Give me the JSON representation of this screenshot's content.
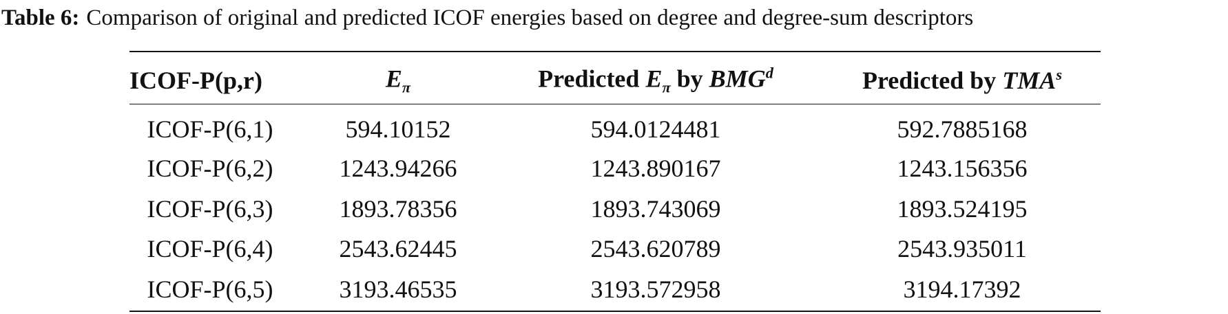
{
  "caption": {
    "label": "Table 6:",
    "text": "Comparison of original and predicted ICOF energies based on degree and degree-sum descriptors"
  },
  "table": {
    "header": [
      [
        "ICOF-P(p,r)"
      ],
      [
        "E",
        "π"
      ],
      [
        "Predicted ",
        "E",
        "π",
        " by ",
        "BMG",
        "d"
      ],
      [
        "Predicted by ",
        "TMA",
        "s"
      ]
    ],
    "rows": [
      [
        "ICOF-P(6,1)",
        "594.10152",
        "594.0124481",
        "592.7885168"
      ],
      [
        "ICOF-P(6,2)",
        "1243.94266",
        "1243.890167",
        "1243.156356"
      ],
      [
        "ICOF-P(6,3)",
        "1893.78356",
        "1893.743069",
        "1893.524195"
      ],
      [
        "ICOF-P(6,4)",
        "2543.62445",
        "2543.620789",
        "2543.935011"
      ],
      [
        "ICOF-P(6,5)",
        "3193.46535",
        "3193.572958",
        "3194.17392"
      ]
    ]
  }
}
